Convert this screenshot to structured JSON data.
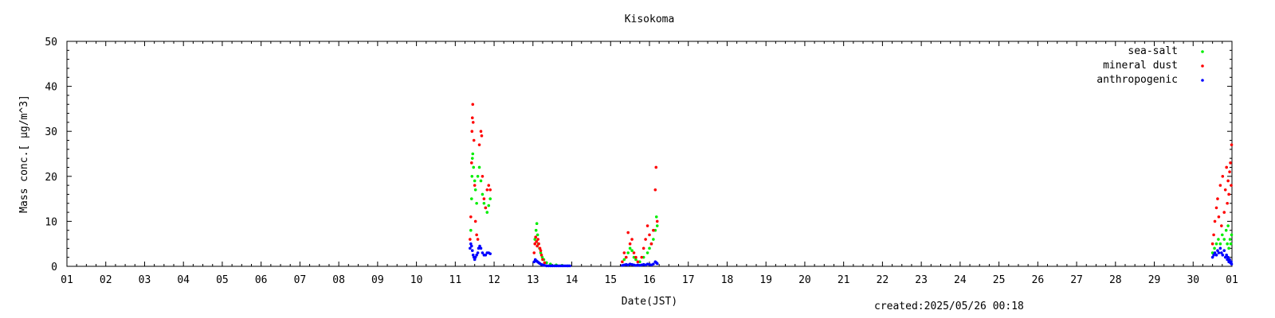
{
  "chart_data": {
    "type": "scatter",
    "title": "Kisokoma",
    "xlabel": "Date(JST)",
    "ylabel": "Mass conc.[ μg/m^3]",
    "xlim": [
      0,
      30
    ],
    "ylim": [
      0,
      50
    ],
    "x_tick_labels": [
      "01",
      "02",
      "03",
      "04",
      "05",
      "06",
      "07",
      "08",
      "09",
      "10",
      "11",
      "12",
      "13",
      "14",
      "15",
      "16",
      "17",
      "18",
      "19",
      "20",
      "21",
      "22",
      "23",
      "24",
      "25",
      "26",
      "27",
      "28",
      "29",
      "30",
      "01"
    ],
    "y_ticks": [
      0,
      10,
      20,
      30,
      40,
      50
    ],
    "grid": false,
    "legend_position": "top-right",
    "series": [
      {
        "name": "sea-salt",
        "color": "#00ee00",
        "points": [
          [
            10.4,
            8.0
          ],
          [
            10.42,
            15.0
          ],
          [
            10.43,
            20.0
          ],
          [
            10.44,
            24.0
          ],
          [
            10.45,
            25.0
          ],
          [
            10.47,
            22.0
          ],
          [
            10.5,
            19.0
          ],
          [
            10.52,
            17.0
          ],
          [
            10.55,
            14.0
          ],
          [
            10.58,
            20.0
          ],
          [
            10.62,
            22.0
          ],
          [
            10.66,
            19.0
          ],
          [
            10.7,
            16.0
          ],
          [
            10.74,
            14.0
          ],
          [
            10.78,
            13.0
          ],
          [
            10.82,
            12.0
          ],
          [
            10.86,
            13.5
          ],
          [
            10.9,
            15.0
          ],
          [
            12.05,
            6.0
          ],
          [
            12.08,
            8.0
          ],
          [
            12.1,
            9.5
          ],
          [
            12.12,
            7.0
          ],
          [
            12.14,
            5.0
          ],
          [
            12.17,
            4.0
          ],
          [
            12.2,
            3.0
          ],
          [
            12.24,
            2.0
          ],
          [
            12.28,
            1.5
          ],
          [
            12.35,
            0.8
          ],
          [
            12.45,
            0.5
          ],
          [
            12.6,
            0.3
          ],
          [
            12.75,
            0.2
          ],
          [
            12.9,
            0.1
          ],
          [
            14.35,
            1.5
          ],
          [
            14.4,
            2.0
          ],
          [
            14.45,
            3.0
          ],
          [
            14.5,
            4.0
          ],
          [
            14.55,
            3.5
          ],
          [
            14.6,
            2.0
          ],
          [
            14.65,
            1.5
          ],
          [
            14.75,
            1.0
          ],
          [
            14.85,
            2.0
          ],
          [
            14.95,
            3.0
          ],
          [
            15.0,
            4.0
          ],
          [
            15.05,
            5.0
          ],
          [
            15.1,
            6.0
          ],
          [
            15.15,
            8.0
          ],
          [
            15.18,
            11.0
          ],
          [
            15.2,
            9.0
          ],
          [
            29.5,
            3.0
          ],
          [
            29.55,
            4.0
          ],
          [
            29.6,
            5.0
          ],
          [
            29.65,
            6.0
          ],
          [
            29.7,
            5.0
          ],
          [
            29.75,
            7.0
          ],
          [
            29.8,
            6.0
          ],
          [
            29.85,
            8.0
          ],
          [
            29.88,
            5.0
          ],
          [
            29.9,
            9.0
          ],
          [
            29.92,
            4.0
          ],
          [
            29.95,
            6.0
          ],
          [
            29.97,
            5.0
          ],
          [
            29.99,
            7.0
          ]
        ]
      },
      {
        "name": "mineral dust",
        "color": "#ff0000",
        "points": [
          [
            10.38,
            6.0
          ],
          [
            10.4,
            11.0
          ],
          [
            10.42,
            23.0
          ],
          [
            10.43,
            30.0
          ],
          [
            10.44,
            33.0
          ],
          [
            10.45,
            36.0
          ],
          [
            10.46,
            32.0
          ],
          [
            10.48,
            28.0
          ],
          [
            10.5,
            18.0
          ],
          [
            10.52,
            10.0
          ],
          [
            10.55,
            7.0
          ],
          [
            10.58,
            6.0
          ],
          [
            10.62,
            27.0
          ],
          [
            10.66,
            30.0
          ],
          [
            10.68,
            29.0
          ],
          [
            10.7,
            20.0
          ],
          [
            10.74,
            15.0
          ],
          [
            10.78,
            13.0
          ],
          [
            10.82,
            17.0
          ],
          [
            10.86,
            18.0
          ],
          [
            10.9,
            17.0
          ],
          [
            12.03,
            3.0
          ],
          [
            12.05,
            5.0
          ],
          [
            12.07,
            6.5
          ],
          [
            12.09,
            5.5
          ],
          [
            12.11,
            4.5
          ],
          [
            12.13,
            6.0
          ],
          [
            12.15,
            5.0
          ],
          [
            12.18,
            4.0
          ],
          [
            12.2,
            3.5
          ],
          [
            12.22,
            2.5
          ],
          [
            12.25,
            1.5
          ],
          [
            12.3,
            0.8
          ],
          [
            14.3,
            1.0
          ],
          [
            14.35,
            3.0
          ],
          [
            14.4,
            2.0
          ],
          [
            14.45,
            7.5
          ],
          [
            14.5,
            5.0
          ],
          [
            14.55,
            6.0
          ],
          [
            14.6,
            3.0
          ],
          [
            14.65,
            2.0
          ],
          [
            14.7,
            1.0
          ],
          [
            14.8,
            2.0
          ],
          [
            14.85,
            4.0
          ],
          [
            14.9,
            6.0
          ],
          [
            14.95,
            9.0
          ],
          [
            15.0,
            7.0
          ],
          [
            15.05,
            5.0
          ],
          [
            15.1,
            8.0
          ],
          [
            15.15,
            17.0
          ],
          [
            15.17,
            22.0
          ],
          [
            15.2,
            10.0
          ],
          [
            29.5,
            5.0
          ],
          [
            29.53,
            7.0
          ],
          [
            29.56,
            10.0
          ],
          [
            29.6,
            13.0
          ],
          [
            29.63,
            15.0
          ],
          [
            29.66,
            11.0
          ],
          [
            29.7,
            18.0
          ],
          [
            29.73,
            9.0
          ],
          [
            29.76,
            20.0
          ],
          [
            29.8,
            12.0
          ],
          [
            29.83,
            17.0
          ],
          [
            29.86,
            22.0
          ],
          [
            29.88,
            14.0
          ],
          [
            29.9,
            19.0
          ],
          [
            29.92,
            16.0
          ],
          [
            29.94,
            21.0
          ],
          [
            29.96,
            23.0
          ],
          [
            29.98,
            18.0
          ],
          [
            29.99,
            27.0
          ]
        ]
      },
      {
        "name": "anthropogenic",
        "color": "#0000ff",
        "points": [
          [
            10.38,
            4.0
          ],
          [
            10.4,
            5.0
          ],
          [
            10.42,
            4.5
          ],
          [
            10.44,
            3.5
          ],
          [
            10.46,
            2.5
          ],
          [
            10.48,
            2.0
          ],
          [
            10.5,
            1.5
          ],
          [
            10.52,
            2.0
          ],
          [
            10.55,
            2.5
          ],
          [
            10.58,
            3.0
          ],
          [
            10.6,
            4.0
          ],
          [
            10.63,
            4.5
          ],
          [
            10.66,
            4.0
          ],
          [
            10.7,
            3.0
          ],
          [
            10.74,
            2.5
          ],
          [
            10.78,
            2.5
          ],
          [
            10.82,
            3.0
          ],
          [
            10.86,
            3.0
          ],
          [
            10.9,
            2.8
          ],
          [
            12.03,
            1.0
          ],
          [
            12.06,
            1.5
          ],
          [
            12.09,
            1.2
          ],
          [
            12.12,
            1.0
          ],
          [
            12.15,
            0.8
          ],
          [
            12.18,
            0.6
          ],
          [
            12.22,
            0.4
          ],
          [
            12.26,
            0.3
          ],
          [
            12.3,
            0.2
          ],
          [
            12.35,
            0.1
          ],
          [
            12.4,
            0.1
          ],
          [
            12.45,
            0.1
          ],
          [
            12.5,
            0.1
          ],
          [
            12.55,
            0.1
          ],
          [
            12.6,
            0.1
          ],
          [
            12.65,
            0.1
          ],
          [
            12.7,
            0.1
          ],
          [
            12.75,
            0.1
          ],
          [
            12.8,
            0.1
          ],
          [
            12.85,
            0.1
          ],
          [
            12.9,
            0.1
          ],
          [
            12.95,
            0.1
          ],
          [
            14.3,
            0.2
          ],
          [
            14.35,
            0.3
          ],
          [
            14.4,
            0.4
          ],
          [
            14.45,
            0.3
          ],
          [
            14.5,
            0.5
          ],
          [
            14.55,
            0.4
          ],
          [
            14.6,
            0.3
          ],
          [
            14.65,
            0.2
          ],
          [
            14.7,
            0.3
          ],
          [
            14.75,
            0.2
          ],
          [
            14.8,
            0.3
          ],
          [
            14.85,
            0.4
          ],
          [
            14.9,
            0.3
          ],
          [
            14.95,
            0.5
          ],
          [
            15.0,
            0.4
          ],
          [
            15.05,
            0.3
          ],
          [
            15.1,
            0.5
          ],
          [
            15.15,
            1.0
          ],
          [
            15.18,
            0.8
          ],
          [
            15.2,
            0.6
          ],
          [
            29.5,
            2.0
          ],
          [
            29.53,
            2.5
          ],
          [
            29.56,
            3.0
          ],
          [
            29.6,
            2.5
          ],
          [
            29.63,
            3.5
          ],
          [
            29.66,
            3.0
          ],
          [
            29.7,
            4.0
          ],
          [
            29.73,
            3.0
          ],
          [
            29.76,
            2.5
          ],
          [
            29.8,
            3.5
          ],
          [
            29.83,
            2.0
          ],
          [
            29.86,
            2.5
          ],
          [
            29.88,
            1.5
          ],
          [
            29.9,
            2.0
          ],
          [
            29.92,
            1.0
          ],
          [
            29.94,
            1.5
          ],
          [
            29.96,
            0.8
          ],
          [
            29.98,
            1.0
          ],
          [
            29.99,
            0.5
          ]
        ]
      }
    ]
  },
  "footer": {
    "created": "created:2025/05/26 00:18"
  }
}
